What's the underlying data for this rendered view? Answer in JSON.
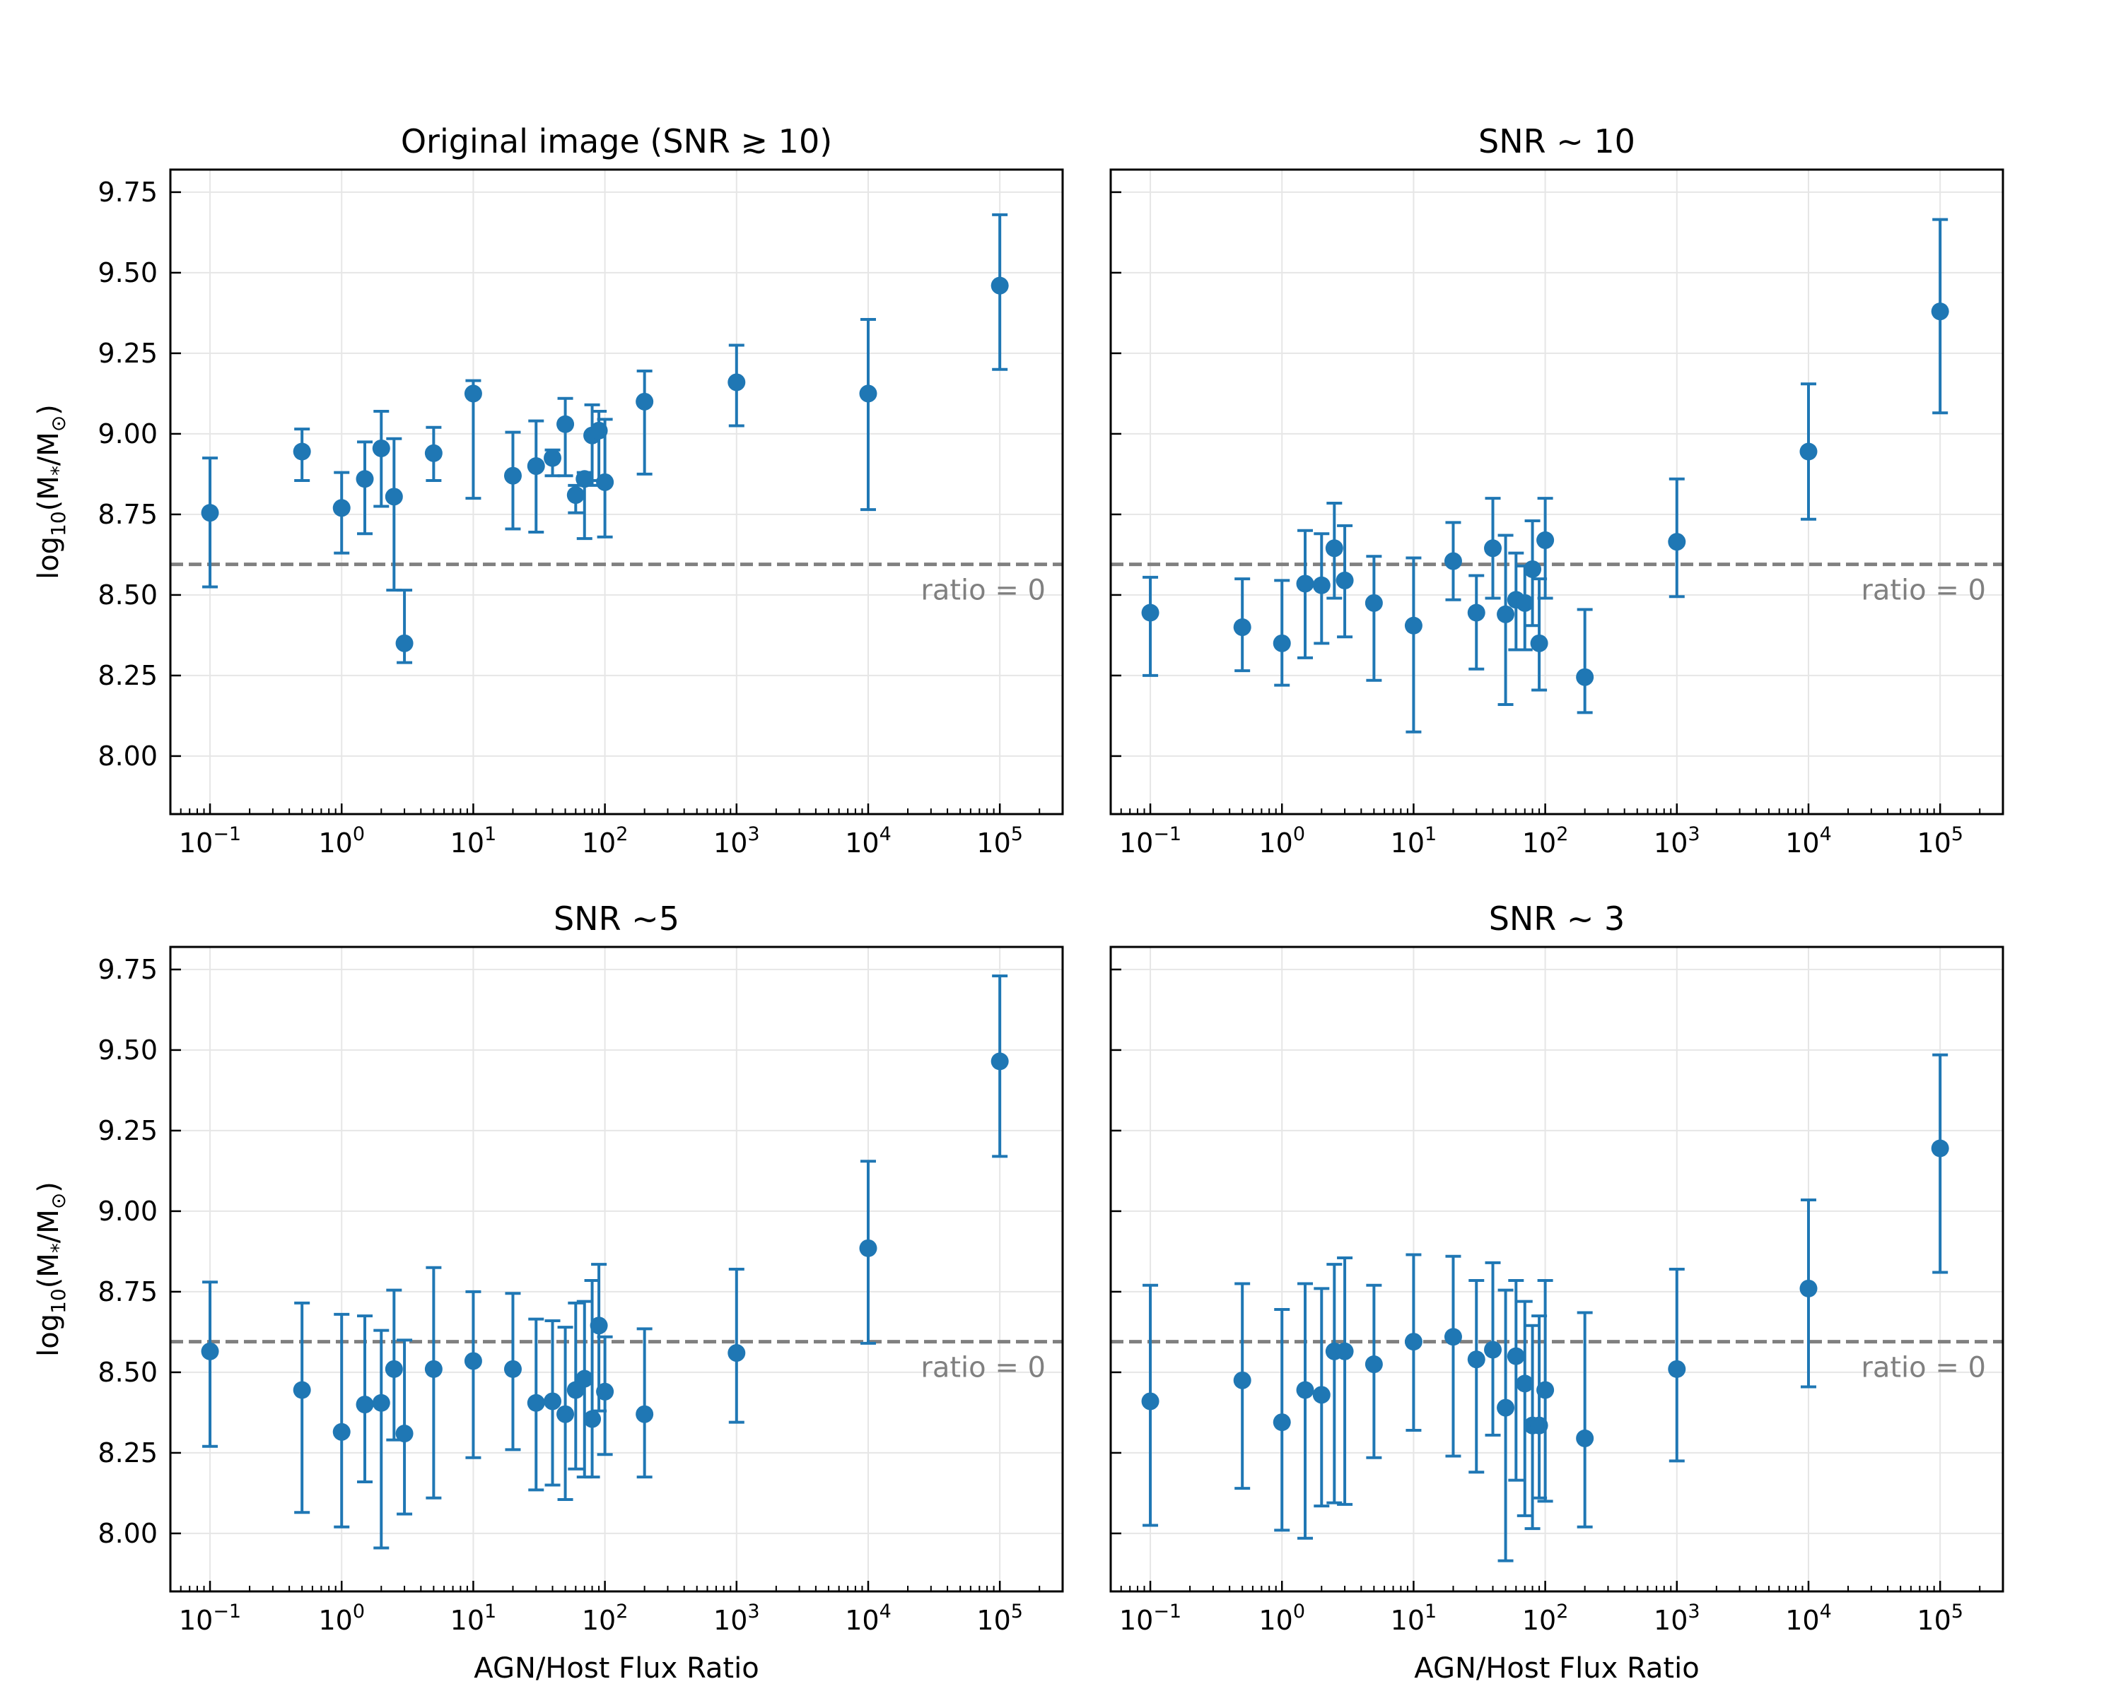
{
  "chart_data": [
    {
      "type": "scatter",
      "title": "Original image (SNR ≳ 10)",
      "xlabel": "",
      "ylabel": "log10(M*/M⊙)",
      "ylabel_parts": {
        "prefix": "log",
        "sub": "10",
        "body": "(M",
        "star": "*",
        "slash": "/M",
        "sun": "⊙",
        "close": ")"
      },
      "xscale": "log",
      "xlim": [
        0.05,
        300000
      ],
      "ylim": [
        7.82,
        9.82
      ],
      "yticks": [
        "8.00",
        "8.25",
        "8.50",
        "8.75",
        "9.00",
        "9.25",
        "9.50",
        "9.75"
      ],
      "xtick_base": "10",
      "xtick_exponents": [
        "−1",
        "0",
        "1",
        "2",
        "3",
        "4",
        "5"
      ],
      "reference_line": {
        "y": 8.595,
        "label": "ratio = 0"
      },
      "color": "#1f77b4",
      "points": [
        {
          "x": 0.1,
          "y": 8.755,
          "lo": 8.525,
          "hi": 8.925
        },
        {
          "x": 0.5,
          "y": 8.945,
          "lo": 8.855,
          "hi": 9.015
        },
        {
          "x": 1,
          "y": 8.77,
          "lo": 8.63,
          "hi": 8.88
        },
        {
          "x": 1.5,
          "y": 8.86,
          "lo": 8.69,
          "hi": 8.975
        },
        {
          "x": 2,
          "y": 8.955,
          "lo": 8.775,
          "hi": 9.07
        },
        {
          "x": 2.5,
          "y": 8.805,
          "lo": 8.515,
          "hi": 8.985
        },
        {
          "x": 3,
          "y": 8.35,
          "lo": 8.29,
          "hi": 8.515
        },
        {
          "x": 5,
          "y": 8.94,
          "lo": 8.855,
          "hi": 9.02
        },
        {
          "x": 10,
          "y": 9.125,
          "lo": 8.8,
          "hi": 9.165
        },
        {
          "x": 20,
          "y": 8.87,
          "lo": 8.705,
          "hi": 9.005
        },
        {
          "x": 30,
          "y": 8.9,
          "lo": 8.695,
          "hi": 9.04
        },
        {
          "x": 40,
          "y": 8.925,
          "lo": 8.87,
          "hi": 8.95
        },
        {
          "x": 50,
          "y": 9.03,
          "lo": 8.87,
          "hi": 9.11
        },
        {
          "x": 60,
          "y": 8.81,
          "lo": 8.755,
          "hi": 8.84
        },
        {
          "x": 70,
          "y": 8.86,
          "lo": 8.675,
          "hi": 8.88
        },
        {
          "x": 80,
          "y": 8.995,
          "lo": 8.84,
          "hi": 9.09
        },
        {
          "x": 90,
          "y": 9.01,
          "lo": 8.855,
          "hi": 9.07
        },
        {
          "x": 100,
          "y": 8.85,
          "lo": 8.68,
          "hi": 9.045
        },
        {
          "x": 200,
          "y": 9.1,
          "lo": 8.875,
          "hi": 9.195
        },
        {
          "x": 1000,
          "y": 9.16,
          "lo": 9.025,
          "hi": 9.275
        },
        {
          "x": 10000,
          "y": 9.125,
          "lo": 8.765,
          "hi": 9.355
        },
        {
          "x": 100000,
          "y": 9.46,
          "lo": 9.2,
          "hi": 9.68
        }
      ]
    },
    {
      "type": "scatter",
      "title": "SNR ~ 10",
      "xlabel": "",
      "ylabel": "",
      "xscale": "log",
      "xlim": [
        0.05,
        300000
      ],
      "ylim": [
        7.82,
        9.82
      ],
      "xtick_base": "10",
      "xtick_exponents": [
        "−1",
        "0",
        "1",
        "2",
        "3",
        "4",
        "5"
      ],
      "reference_line": {
        "y": 8.595,
        "label": "ratio = 0"
      },
      "color": "#1f77b4",
      "points": [
        {
          "x": 0.1,
          "y": 8.445,
          "lo": 8.25,
          "hi": 8.555
        },
        {
          "x": 0.5,
          "y": 8.4,
          "lo": 8.265,
          "hi": 8.55
        },
        {
          "x": 1,
          "y": 8.35,
          "lo": 8.22,
          "hi": 8.545
        },
        {
          "x": 1.5,
          "y": 8.535,
          "lo": 8.305,
          "hi": 8.7
        },
        {
          "x": 2,
          "y": 8.53,
          "lo": 8.35,
          "hi": 8.69
        },
        {
          "x": 2.5,
          "y": 8.645,
          "lo": 8.49,
          "hi": 8.785
        },
        {
          "x": 3,
          "y": 8.545,
          "lo": 8.37,
          "hi": 8.715
        },
        {
          "x": 5,
          "y": 8.475,
          "lo": 8.235,
          "hi": 8.62
        },
        {
          "x": 10,
          "y": 8.405,
          "lo": 8.075,
          "hi": 8.615
        },
        {
          "x": 20,
          "y": 8.605,
          "lo": 8.485,
          "hi": 8.725
        },
        {
          "x": 30,
          "y": 8.445,
          "lo": 8.27,
          "hi": 8.56
        },
        {
          "x": 40,
          "y": 8.645,
          "lo": 8.49,
          "hi": 8.8
        },
        {
          "x": 50,
          "y": 8.44,
          "lo": 8.16,
          "hi": 8.685
        },
        {
          "x": 60,
          "y": 8.485,
          "lo": 8.33,
          "hi": 8.63
        },
        {
          "x": 70,
          "y": 8.475,
          "lo": 8.33,
          "hi": 8.59
        },
        {
          "x": 80,
          "y": 8.58,
          "lo": 8.405,
          "hi": 8.73
        },
        {
          "x": 90,
          "y": 8.35,
          "lo": 8.205,
          "hi": 8.55
        },
        {
          "x": 100,
          "y": 8.67,
          "lo": 8.49,
          "hi": 8.8
        },
        {
          "x": 200,
          "y": 8.245,
          "lo": 8.135,
          "hi": 8.455
        },
        {
          "x": 1000,
          "y": 8.665,
          "lo": 8.495,
          "hi": 8.86
        },
        {
          "x": 10000,
          "y": 8.945,
          "lo": 8.735,
          "hi": 9.155
        },
        {
          "x": 100000,
          "y": 9.38,
          "lo": 9.065,
          "hi": 9.665
        }
      ]
    },
    {
      "type": "scatter",
      "title": "SNR ~5",
      "xlabel": "AGN/Host Flux Ratio",
      "ylabel": "log10(M*/M⊙)",
      "ylabel_parts": {
        "prefix": "log",
        "sub": "10",
        "body": "(M",
        "star": "*",
        "slash": "/M",
        "sun": "⊙",
        "close": ")"
      },
      "xscale": "log",
      "xlim": [
        0.05,
        300000
      ],
      "ylim": [
        7.82,
        9.82
      ],
      "yticks": [
        "8.00",
        "8.25",
        "8.50",
        "8.75",
        "9.00",
        "9.25",
        "9.50",
        "9.75"
      ],
      "xtick_base": "10",
      "xtick_exponents": [
        "−1",
        "0",
        "1",
        "2",
        "3",
        "4",
        "5"
      ],
      "reference_line": {
        "y": 8.595,
        "label": "ratio = 0"
      },
      "color": "#1f77b4",
      "points": [
        {
          "x": 0.1,
          "y": 8.565,
          "lo": 8.27,
          "hi": 8.78
        },
        {
          "x": 0.5,
          "y": 8.445,
          "lo": 8.065,
          "hi": 8.715
        },
        {
          "x": 1,
          "y": 8.315,
          "lo": 8.02,
          "hi": 8.68
        },
        {
          "x": 1.5,
          "y": 8.4,
          "lo": 8.16,
          "hi": 8.675
        },
        {
          "x": 2,
          "y": 8.405,
          "lo": 7.955,
          "hi": 8.63
        },
        {
          "x": 2.5,
          "y": 8.51,
          "lo": 8.29,
          "hi": 8.755
        },
        {
          "x": 3,
          "y": 8.31,
          "lo": 8.06,
          "hi": 8.6
        },
        {
          "x": 5,
          "y": 8.51,
          "lo": 8.11,
          "hi": 8.825
        },
        {
          "x": 10,
          "y": 8.535,
          "lo": 8.235,
          "hi": 8.75
        },
        {
          "x": 20,
          "y": 8.51,
          "lo": 8.26,
          "hi": 8.745
        },
        {
          "x": 30,
          "y": 8.405,
          "lo": 8.135,
          "hi": 8.665
        },
        {
          "x": 40,
          "y": 8.41,
          "lo": 8.15,
          "hi": 8.66
        },
        {
          "x": 50,
          "y": 8.37,
          "lo": 8.105,
          "hi": 8.64
        },
        {
          "x": 60,
          "y": 8.445,
          "lo": 8.2,
          "hi": 8.715
        },
        {
          "x": 70,
          "y": 8.48,
          "lo": 8.175,
          "hi": 8.72
        },
        {
          "x": 80,
          "y": 8.355,
          "lo": 8.175,
          "hi": 8.785
        },
        {
          "x": 90,
          "y": 8.645,
          "lo": 8.38,
          "hi": 8.835
        },
        {
          "x": 100,
          "y": 8.44,
          "lo": 8.245,
          "hi": 8.61
        },
        {
          "x": 200,
          "y": 8.37,
          "lo": 8.175,
          "hi": 8.635
        },
        {
          "x": 1000,
          "y": 8.56,
          "lo": 8.345,
          "hi": 8.82
        },
        {
          "x": 10000,
          "y": 8.885,
          "lo": 8.59,
          "hi": 9.155
        },
        {
          "x": 100000,
          "y": 9.465,
          "lo": 9.17,
          "hi": 9.73
        }
      ]
    },
    {
      "type": "scatter",
      "title": "SNR ~ 3",
      "xlabel": "AGN/Host Flux Ratio",
      "ylabel": "",
      "xscale": "log",
      "xlim": [
        0.05,
        300000
      ],
      "ylim": [
        7.82,
        9.82
      ],
      "xtick_base": "10",
      "xtick_exponents": [
        "−1",
        "0",
        "1",
        "2",
        "3",
        "4",
        "5"
      ],
      "reference_line": {
        "y": 8.595,
        "label": "ratio = 0"
      },
      "color": "#1f77b4",
      "points": [
        {
          "x": 0.1,
          "y": 8.41,
          "lo": 8.025,
          "hi": 8.77
        },
        {
          "x": 0.5,
          "y": 8.475,
          "lo": 8.14,
          "hi": 8.775
        },
        {
          "x": 1,
          "y": 8.345,
          "lo": 8.01,
          "hi": 8.695
        },
        {
          "x": 1.5,
          "y": 8.445,
          "lo": 7.985,
          "hi": 8.775
        },
        {
          "x": 2,
          "y": 8.43,
          "lo": 8.085,
          "hi": 8.76
        },
        {
          "x": 2.5,
          "y": 8.565,
          "lo": 8.095,
          "hi": 8.835
        },
        {
          "x": 3,
          "y": 8.565,
          "lo": 8.09,
          "hi": 8.855
        },
        {
          "x": 5,
          "y": 8.525,
          "lo": 8.235,
          "hi": 8.77
        },
        {
          "x": 10,
          "y": 8.595,
          "lo": 8.32,
          "hi": 8.865
        },
        {
          "x": 20,
          "y": 8.61,
          "lo": 8.24,
          "hi": 8.86
        },
        {
          "x": 30,
          "y": 8.54,
          "lo": 8.19,
          "hi": 8.785
        },
        {
          "x": 40,
          "y": 8.57,
          "lo": 8.305,
          "hi": 8.84
        },
        {
          "x": 50,
          "y": 8.39,
          "lo": 7.915,
          "hi": 8.755
        },
        {
          "x": 60,
          "y": 8.55,
          "lo": 8.165,
          "hi": 8.785
        },
        {
          "x": 70,
          "y": 8.465,
          "lo": 8.055,
          "hi": 8.72
        },
        {
          "x": 80,
          "y": 8.335,
          "lo": 8.015,
          "hi": 8.645
        },
        {
          "x": 90,
          "y": 8.335,
          "lo": 8.11,
          "hi": 8.675
        },
        {
          "x": 100,
          "y": 8.445,
          "lo": 8.1,
          "hi": 8.785
        },
        {
          "x": 200,
          "y": 8.295,
          "lo": 8.02,
          "hi": 8.685
        },
        {
          "x": 1000,
          "y": 8.51,
          "lo": 8.225,
          "hi": 8.82
        },
        {
          "x": 10000,
          "y": 8.76,
          "lo": 8.455,
          "hi": 9.035
        },
        {
          "x": 100000,
          "y": 9.195,
          "lo": 8.81,
          "hi": 9.485
        }
      ]
    }
  ]
}
